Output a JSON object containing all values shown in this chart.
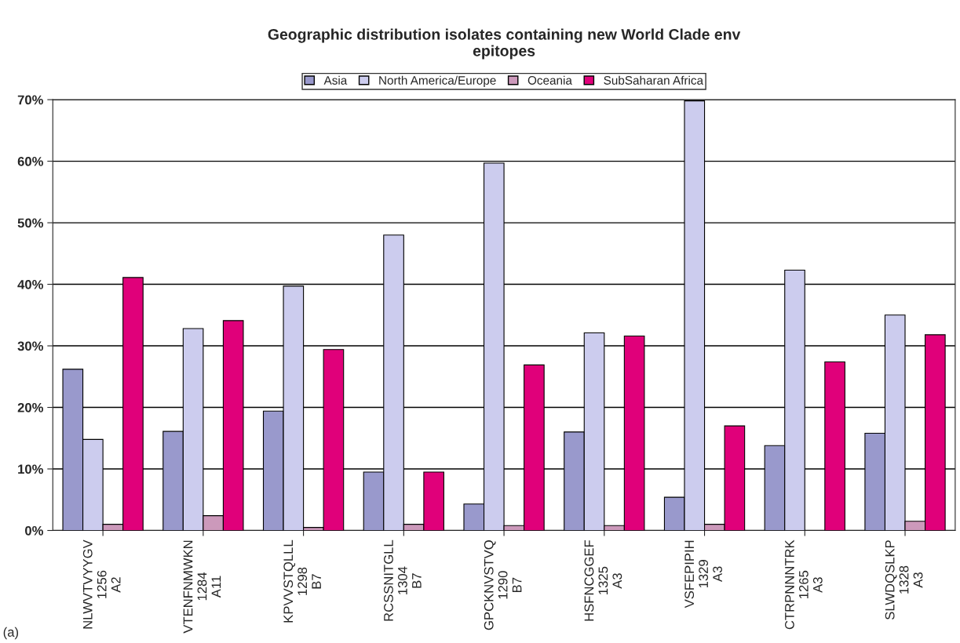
{
  "chart_data": {
    "type": "bar",
    "title": "Geographic distribution isolates containing new World Clade env\nepitopes",
    "categories": [
      "NLWVTVYYGV\n1256\nA2",
      "VTENFNMWKN\n1284\nA11",
      "KPVVSTQLLL\n1298\nB7",
      "RCSSNITGLL\n1304\nB7",
      "GPCKNVSTVQ\n1290\nB7",
      "HSFNCGGEF\n1325\nA3",
      "VSFEPIPIH\n1329\nA3",
      "CTRPNNNTRK\n1265\nA3",
      "SLWDQSLKP\n1328\nA3"
    ],
    "series": [
      {
        "name": "Asia",
        "color": "#9999cc",
        "values": [
          26.2,
          16.1,
          19.4,
          9.5,
          4.3,
          16,
          5.4,
          13.8,
          15.8
        ]
      },
      {
        "name": "North America/Europe",
        "color": "#ccccee",
        "values": [
          14.8,
          32.8,
          39.7,
          48,
          59.7,
          32.1,
          69.8,
          42.3,
          35
        ]
      },
      {
        "name": "Oceania",
        "color": "#cc99bb",
        "values": [
          1,
          2.4,
          0.5,
          1,
          0.8,
          0.8,
          1,
          null,
          1.5
        ]
      },
      {
        "name": "SubSaharan Africa",
        "color": "#e0007a",
        "values": [
          41.1,
          34.1,
          29.4,
          9.5,
          26.9,
          31.6,
          17,
          27.4,
          31.8
        ]
      }
    ],
    "ylim": [
      0,
      70
    ],
    "yticks": [
      {
        "value": 0,
        "label": "0%"
      },
      {
        "value": 10,
        "label": "10%"
      },
      {
        "value": 20,
        "label": "20%"
      },
      {
        "value": 30,
        "label": "30%"
      },
      {
        "value": 40,
        "label": "40%"
      },
      {
        "value": 50,
        "label": "50%"
      },
      {
        "value": 60,
        "label": "60%"
      },
      {
        "value": 70,
        "label": "70%"
      }
    ],
    "grid": "y",
    "legend": "top",
    "annotations": [
      "(a)"
    ]
  }
}
